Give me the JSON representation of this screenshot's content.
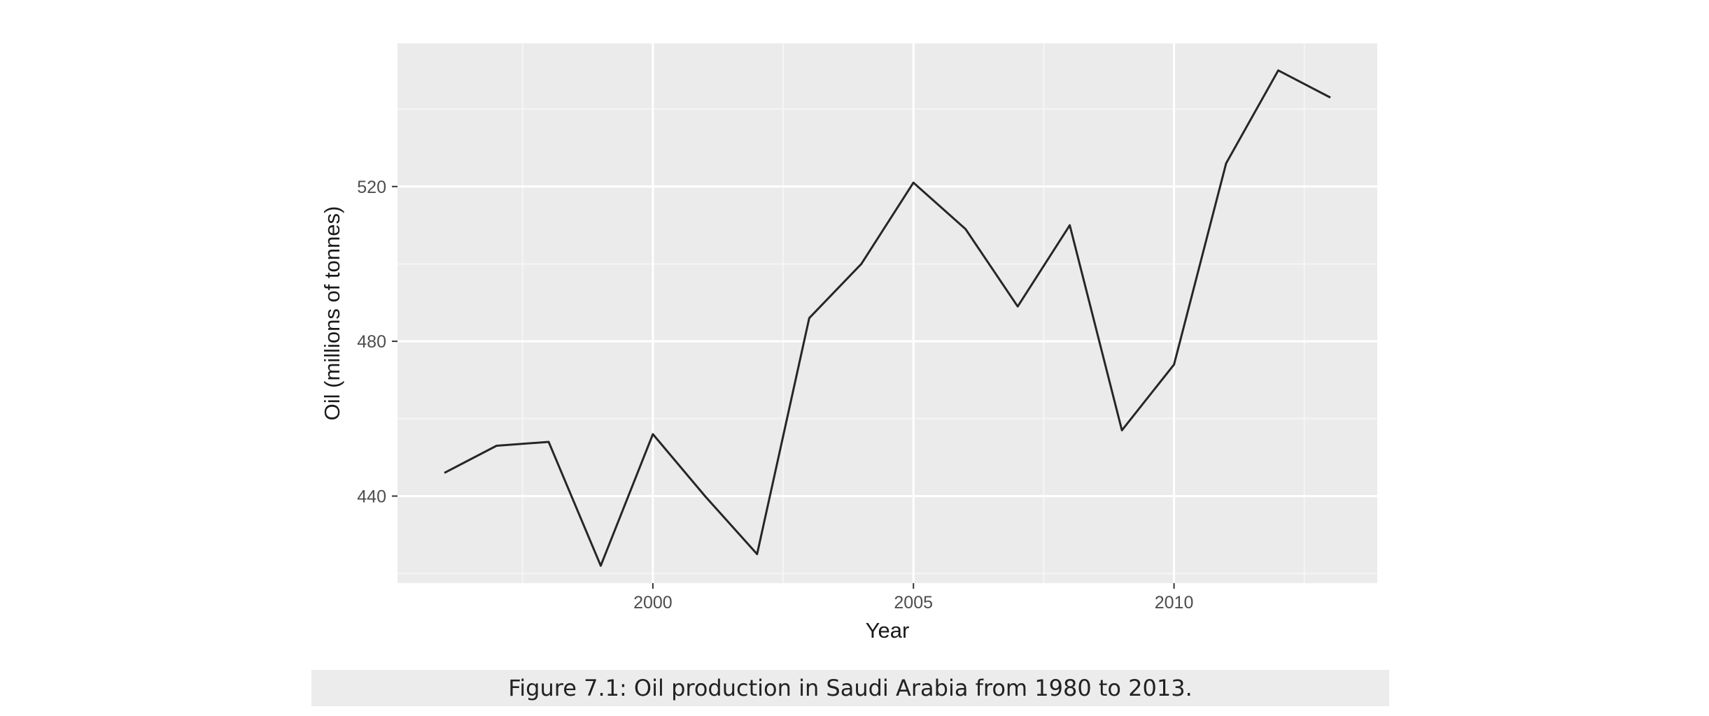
{
  "chart_data": {
    "type": "line",
    "title": "",
    "xlabel": "Year",
    "ylabel": "Oil (millions of tonnes)",
    "x": [
      1996,
      1997,
      1998,
      1999,
      2000,
      2001,
      2002,
      2003,
      2004,
      2005,
      2006,
      2007,
      2008,
      2009,
      2010,
      2011,
      2012,
      2013
    ],
    "series": [
      {
        "values": [
          446,
          453,
          454,
          422,
          456,
          440,
          425,
          486,
          500,
          521,
          509,
          489,
          510,
          457,
          474,
          526,
          550,
          543
        ]
      }
    ],
    "xlim": [
      1995.1,
      2013.9
    ],
    "ylim": [
      417.5,
      557
    ],
    "x_ticks": [
      2000,
      2005,
      2010
    ],
    "y_ticks": [
      440,
      480,
      520
    ],
    "x_tick_labels": [
      "2000",
      "2005",
      "2010"
    ],
    "y_tick_labels": [
      "440",
      "480",
      "520"
    ],
    "grid": true,
    "legend": "none",
    "colors": {
      "panel_background": "#ebebeb",
      "grid_major": "#ffffff",
      "grid_minor": "#f5f5f5",
      "line": "#262626"
    }
  },
  "caption": "Figure 7.1: Oil production in Saudi Arabia from 1980 to 2013."
}
